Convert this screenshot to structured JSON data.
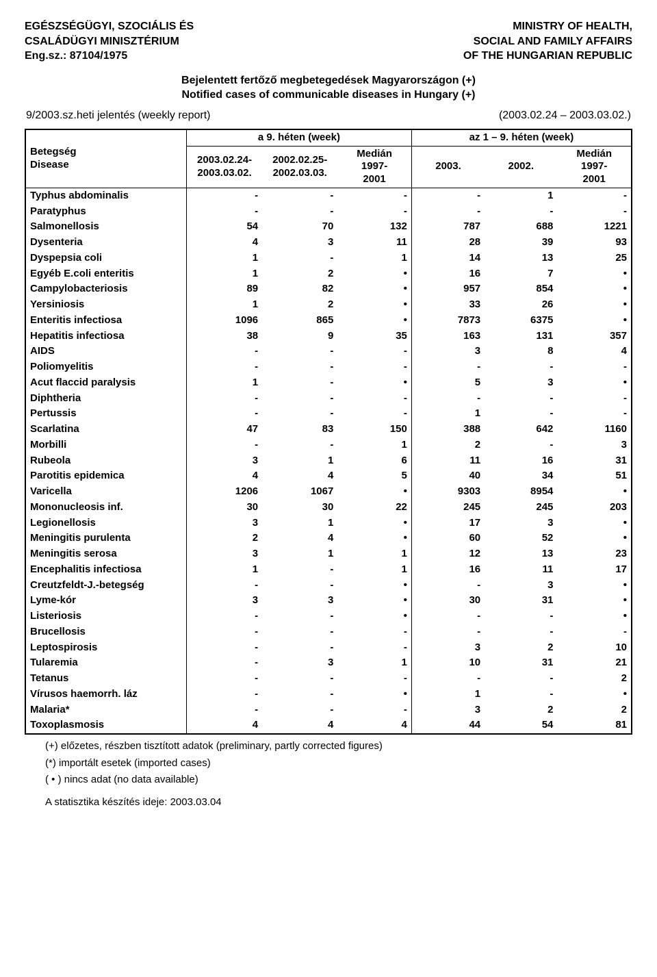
{
  "header": {
    "left_line1": "EGÉSZSÉGÜGYI, SZOCIÁLIS ÉS",
    "left_line2": "CSALÁDÜGYI MINISZTÉRIUM",
    "left_line3": "Eng.sz.: 87104/1975",
    "right_line1": "MINISTRY OF HEALTH,",
    "right_line2": "SOCIAL AND FAMILY AFFAIRS",
    "right_line3": "OF THE HUNGARIAN REPUBLIC"
  },
  "title": {
    "line1": "Bejelentett fertőző megbetegedések Magyarországon (+)",
    "line2": "Notified cases of communicable diseases in Hungary (+)"
  },
  "report": {
    "left": "9/2003.sz.heti jelentés (weekly report)",
    "right": "(2003.02.24 – 2003.03.02.)"
  },
  "table": {
    "group_left": "a 9. héten (week)",
    "group_right": "az 1 – 9. héten (week)",
    "disease_hu": "Betegség",
    "disease_en": "Disease",
    "col1a": "2003.02.24-",
    "col1b": "2003.03.02.",
    "col2a": "2002.02.25-",
    "col2b": "2002.03.03.",
    "col3a": "Medián",
    "col3b": "1997-",
    "col3c": "2001",
    "col4": "2003.",
    "col5": "2002.",
    "col6a": "Medián",
    "col6b": "1997-",
    "col6c": "2001",
    "rows": [
      {
        "d": "Typhus abdominalis",
        "v": [
          "-",
          "-",
          "-",
          "-",
          "1",
          "-"
        ]
      },
      {
        "d": "Paratyphus",
        "v": [
          "-",
          "-",
          "-",
          "-",
          "-",
          "-"
        ]
      },
      {
        "d": "Salmonellosis",
        "v": [
          "54",
          "70",
          "132",
          "787",
          "688",
          "1221"
        ]
      },
      {
        "d": "Dysenteria",
        "v": [
          "4",
          "3",
          "11",
          "28",
          "39",
          "93"
        ]
      },
      {
        "d": "Dyspepsia coli",
        "v": [
          "1",
          "-",
          "1",
          "14",
          "13",
          "25"
        ]
      },
      {
        "d": "Egyéb E.coli enteritis",
        "v": [
          "1",
          "2",
          "•",
          "16",
          "7",
          "•"
        ]
      },
      {
        "d": "Campylobacteriosis",
        "v": [
          "89",
          "82",
          "•",
          "957",
          "854",
          "•"
        ]
      },
      {
        "d": "Yersiniosis",
        "v": [
          "1",
          "2",
          "•",
          "33",
          "26",
          "•"
        ]
      },
      {
        "d": "Enteritis infectiosa",
        "v": [
          "1096",
          "865",
          "•",
          "7873",
          "6375",
          "•"
        ]
      },
      {
        "d": "Hepatitis infectiosa",
        "v": [
          "38",
          "9",
          "35",
          "163",
          "131",
          "357"
        ]
      },
      {
        "d": "AIDS",
        "v": [
          "-",
          "-",
          "-",
          "3",
          "8",
          "4"
        ]
      },
      {
        "d": "Poliomyelitis",
        "v": [
          "-",
          "-",
          "-",
          "-",
          "-",
          "-"
        ]
      },
      {
        "d": "Acut flaccid paralysis",
        "v": [
          "1",
          "-",
          "•",
          "5",
          "3",
          "•"
        ]
      },
      {
        "d": "Diphtheria",
        "v": [
          "-",
          "-",
          "-",
          "-",
          "-",
          "-"
        ]
      },
      {
        "d": "Pertussis",
        "v": [
          "-",
          "-",
          "-",
          "1",
          "-",
          "-"
        ]
      },
      {
        "d": "Scarlatina",
        "v": [
          "47",
          "83",
          "150",
          "388",
          "642",
          "1160"
        ]
      },
      {
        "d": "Morbilli",
        "v": [
          "-",
          "-",
          "1",
          "2",
          "-",
          "3"
        ]
      },
      {
        "d": "Rubeola",
        "v": [
          "3",
          "1",
          "6",
          "11",
          "16",
          "31"
        ]
      },
      {
        "d": "Parotitis epidemica",
        "v": [
          "4",
          "4",
          "5",
          "40",
          "34",
          "51"
        ]
      },
      {
        "d": "Varicella",
        "v": [
          "1206",
          "1067",
          "•",
          "9303",
          "8954",
          "•"
        ]
      },
      {
        "d": "Mononucleosis inf.",
        "v": [
          "30",
          "30",
          "22",
          "245",
          "245",
          "203"
        ]
      },
      {
        "d": "Legionellosis",
        "v": [
          "3",
          "1",
          "•",
          "17",
          "3",
          "•"
        ]
      },
      {
        "d": "Meningitis purulenta",
        "v": [
          "2",
          "4",
          "•",
          "60",
          "52",
          "•"
        ]
      },
      {
        "d": "Meningitis serosa",
        "v": [
          "3",
          "1",
          "1",
          "12",
          "13",
          "23"
        ]
      },
      {
        "d": "Encephalitis infectiosa",
        "v": [
          "1",
          "-",
          "1",
          "16",
          "11",
          "17"
        ]
      },
      {
        "d": "Creutzfeldt-J.-betegség",
        "v": [
          "-",
          "-",
          "•",
          "-",
          "3",
          "•"
        ]
      },
      {
        "d": "Lyme-kór",
        "v": [
          "3",
          "3",
          "•",
          "30",
          "31",
          "•"
        ]
      },
      {
        "d": "Listeriosis",
        "v": [
          "-",
          "-",
          "•",
          "-",
          "-",
          "•"
        ]
      },
      {
        "d": "Brucellosis",
        "v": [
          "-",
          "-",
          "-",
          "-",
          "-",
          "-"
        ]
      },
      {
        "d": "Leptospirosis",
        "v": [
          "-",
          "-",
          "-",
          "3",
          "2",
          "10"
        ]
      },
      {
        "d": "Tularemia",
        "v": [
          "-",
          "3",
          "1",
          "10",
          "31",
          "21"
        ]
      },
      {
        "d": "Tetanus",
        "v": [
          "-",
          "-",
          "-",
          "-",
          "-",
          "2"
        ]
      },
      {
        "d": "Vírusos haemorrh. láz",
        "v": [
          "-",
          "-",
          "•",
          "1",
          "-",
          "•"
        ]
      },
      {
        "d": "Malaria*",
        "v": [
          "-",
          "-",
          "-",
          "3",
          "2",
          "2"
        ]
      },
      {
        "d": "Toxoplasmosis",
        "v": [
          "4",
          "4",
          "4",
          "44",
          "54",
          "81"
        ]
      }
    ]
  },
  "footnotes": {
    "f1": "(+) előzetes, részben tisztított adatok (preliminary, partly corrected figures)",
    "f2": "(*) importált esetek (imported cases)",
    "f3": "( • ) nincs adat (no data available)"
  },
  "prep_date": "A statisztika készítés ideje: 2003.03.04"
}
